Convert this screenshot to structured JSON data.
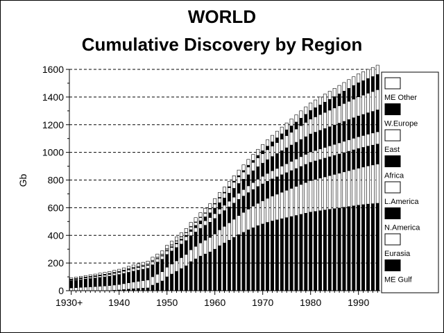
{
  "chart_data": {
    "type": "bar",
    "stacked": true,
    "title": "WORLD",
    "subtitle": "Cumulative Discovery by Region",
    "xlabel": "",
    "ylabel": "Gb",
    "ylim": [
      0,
      1600
    ],
    "yticks": [
      0,
      200,
      400,
      600,
      800,
      1000,
      1200,
      1400,
      1600
    ],
    "xtick_labels": [
      {
        "year": 1930,
        "label": "1930+"
      },
      {
        "year": 1940,
        "label": "1940"
      },
      {
        "year": 1950,
        "label": "1950"
      },
      {
        "year": 1960,
        "label": "1960"
      },
      {
        "year": 1970,
        "label": "1970"
      },
      {
        "year": 1980,
        "label": "1980"
      },
      {
        "year": 1990,
        "label": "1990"
      }
    ],
    "grid": "horizontal dashed",
    "legend_position": "right",
    "series_order_bottom_to_top": [
      "ME Gulf",
      "Eurasia",
      "N.America",
      "L.America",
      "Africa",
      "East",
      "W.Europe",
      "ME Other"
    ],
    "legend_order_top_to_bottom": [
      "ME Other",
      "W.Europe",
      "East",
      "Africa",
      "L.America",
      "N.America",
      "Eurasia",
      "ME Gulf"
    ],
    "series_fill": {
      "ME Gulf": "#000000",
      "Eurasia": "#ffffff",
      "N.America": "#000000",
      "L.America": "#ffffff",
      "Africa": "#000000",
      "East": "#ffffff",
      "W.Europe": "#000000",
      "ME Other": "#ffffff"
    },
    "categories": [
      1930,
      1931,
      1932,
      1933,
      1934,
      1935,
      1936,
      1937,
      1938,
      1939,
      1940,
      1941,
      1942,
      1943,
      1944,
      1945,
      1946,
      1947,
      1948,
      1949,
      1950,
      1951,
      1952,
      1953,
      1954,
      1955,
      1956,
      1957,
      1958,
      1959,
      1960,
      1961,
      1962,
      1963,
      1964,
      1965,
      1966,
      1967,
      1968,
      1969,
      1970,
      1971,
      1972,
      1973,
      1974,
      1975,
      1976,
      1977,
      1978,
      1979,
      1980,
      1981,
      1982,
      1983,
      1984,
      1985,
      1986,
      1987,
      1988,
      1989,
      1990,
      1991,
      1992,
      1993,
      1994
    ],
    "series": [
      {
        "name": "ME Gulf",
        "values": [
          0,
          0,
          0,
          0,
          0,
          0,
          0,
          0,
          1,
          3,
          5,
          8,
          11,
          14,
          16,
          18,
          20,
          40,
          55,
          70,
          100,
          120,
          140,
          160,
          180,
          210,
          230,
          250,
          265,
          280,
          300,
          325,
          345,
          365,
          385,
          405,
          422,
          440,
          455,
          470,
          482,
          494,
          504,
          512,
          520,
          528,
          536,
          544,
          552,
          560,
          568,
          573,
          578,
          583,
          588,
          593,
          598,
          603,
          608,
          613,
          618,
          622,
          626,
          629,
          632
        ]
      },
      {
        "name": "Eurasia",
        "values": [
          20,
          22,
          24,
          26,
          28,
          30,
          32,
          34,
          36,
          38,
          40,
          43,
          46,
          49,
          52,
          55,
          58,
          61,
          64,
          67,
          70,
          73,
          76,
          79,
          82,
          86,
          90,
          95,
          100,
          105,
          110,
          115,
          120,
          126,
          132,
          138,
          144,
          150,
          156,
          162,
          168,
          174,
          180,
          186,
          192,
          198,
          204,
          210,
          216,
          222,
          228,
          232,
          236,
          240,
          244,
          248,
          252,
          256,
          260,
          264,
          268,
          272,
          276,
          280,
          284
        ]
      },
      {
        "name": "N.America",
        "values": [
          52,
          54,
          56,
          58,
          60,
          62,
          64,
          66,
          68,
          70,
          72,
          74,
          76,
          78,
          80,
          82,
          84,
          86,
          88,
          90,
          92,
          94,
          96,
          98,
          100,
          102,
          104,
          106,
          108,
          110,
          112,
          113,
          114,
          115,
          116,
          117,
          118,
          119,
          120,
          121,
          122,
          123,
          124,
          125,
          126,
          127,
          128,
          129,
          130,
          131,
          132,
          133,
          134,
          135,
          136,
          137,
          138,
          139,
          140,
          141,
          142,
          142,
          143,
          143,
          144
        ]
      },
      {
        "name": "L.America",
        "values": [
          5,
          6,
          7,
          8,
          9,
          10,
          11,
          12,
          13,
          14,
          15,
          16,
          17,
          18,
          19,
          20,
          21,
          22,
          23,
          24,
          25,
          26,
          27,
          28,
          29,
          30,
          31,
          32,
          33,
          34,
          35,
          37,
          39,
          41,
          43,
          45,
          47,
          49,
          51,
          53,
          55,
          57,
          59,
          61,
          63,
          65,
          67,
          69,
          71,
          73,
          75,
          76,
          77,
          78,
          79,
          80,
          81,
          82,
          83,
          84,
          85,
          86,
          87,
          88,
          89
        ]
      },
      {
        "name": "Africa",
        "values": [
          3,
          3,
          3,
          3,
          3,
          3,
          3,
          3,
          3,
          3,
          3,
          3,
          3,
          3,
          3,
          3,
          3,
          3,
          3,
          3,
          4,
          5,
          6,
          8,
          10,
          13,
          17,
          22,
          28,
          34,
          40,
          46,
          52,
          58,
          64,
          70,
          75,
          80,
          85,
          90,
          95,
          99,
          103,
          107,
          111,
          115,
          118,
          121,
          124,
          127,
          130,
          132,
          134,
          136,
          138,
          140,
          142,
          144,
          146,
          148,
          150,
          152,
          154,
          156,
          158
        ]
      },
      {
        "name": "East",
        "values": [
          2,
          2,
          2,
          2,
          2,
          2,
          3,
          3,
          3,
          4,
          4,
          4,
          5,
          5,
          5,
          6,
          6,
          7,
          8,
          9,
          10,
          12,
          14,
          16,
          18,
          20,
          22,
          24,
          26,
          28,
          30,
          33,
          36,
          40,
          44,
          48,
          52,
          56,
          60,
          64,
          68,
          72,
          76,
          80,
          84,
          88,
          92,
          96,
          100,
          104,
          108,
          111,
          114,
          117,
          120,
          123,
          126,
          129,
          132,
          135,
          138,
          140,
          142,
          144,
          146
        ]
      },
      {
        "name": "W.Europe",
        "values": [
          1,
          1,
          1,
          1,
          1,
          1,
          1,
          1,
          1,
          1,
          1,
          1,
          1,
          1,
          1,
          1,
          1,
          1,
          1,
          1,
          2,
          2,
          2,
          2,
          2,
          3,
          3,
          3,
          3,
          4,
          4,
          5,
          6,
          7,
          8,
          9,
          11,
          13,
          15,
          18,
          22,
          26,
          30,
          34,
          38,
          42,
          46,
          50,
          54,
          58,
          62,
          66,
          70,
          74,
          78,
          82,
          86,
          90,
          94,
          98,
          102,
          104,
          106,
          108,
          110
        ]
      },
      {
        "name": "ME Other",
        "values": [
          10,
          10,
          11,
          11,
          12,
          12,
          13,
          13,
          14,
          14,
          15,
          16,
          17,
          18,
          19,
          20,
          21,
          22,
          23,
          24,
          25,
          26,
          27,
          28,
          29,
          30,
          31,
          32,
          33,
          34,
          35,
          36,
          37,
          38,
          39,
          40,
          41,
          42,
          43,
          44,
          45,
          46,
          47,
          48,
          49,
          50,
          51,
          52,
          53,
          54,
          55,
          56,
          57,
          58,
          59,
          60,
          61,
          62,
          63,
          64,
          65,
          65,
          66,
          66,
          67
        ]
      }
    ]
  }
}
